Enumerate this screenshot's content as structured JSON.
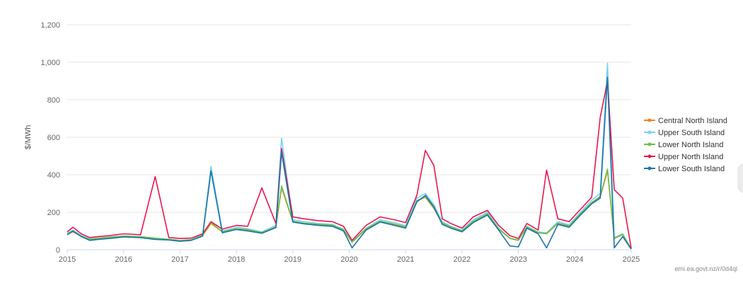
{
  "chart_data": {
    "type": "line",
    "title": "",
    "xlabel": "",
    "ylabel": "$/MWh",
    "ylim": [
      0,
      1200
    ],
    "xlim": [
      2015,
      2025
    ],
    "yticks": [
      0,
      200,
      400,
      600,
      800,
      1000,
      1200
    ],
    "ytick_labels": [
      "0",
      "200",
      "400",
      "600",
      "800",
      "1,000",
      "1,200"
    ],
    "xticks": [
      2015,
      2016,
      2017,
      2018,
      2019,
      2020,
      2021,
      2022,
      2023,
      2024,
      2025
    ],
    "xtick_labels": [
      "2015",
      "2016",
      "2017",
      "2018",
      "2019",
      "2020",
      "2021",
      "2022",
      "2023",
      "2024",
      "2025"
    ],
    "grid": "horizontal",
    "legend_position": "right",
    "credit": "emi.ea.govt.nz/r/0d4ql",
    "series": [
      {
        "name": "Central North Island",
        "color": "#f5821f",
        "x": [
          2015.0,
          2015.1,
          2015.25,
          2015.4,
          2015.55,
          2015.75,
          2016.0,
          2016.3,
          2016.56,
          2016.8,
          2017.0,
          2017.2,
          2017.4,
          2017.55,
          2017.75,
          2018.0,
          2018.2,
          2018.45,
          2018.7,
          2018.8,
          2019.0,
          2019.2,
          2019.45,
          2019.7,
          2019.9,
          2020.05,
          2020.3,
          2020.55,
          2020.8,
          2021.0,
          2021.2,
          2021.35,
          2021.5,
          2021.65,
          2021.8,
          2022.0,
          2022.2,
          2022.45,
          2022.65,
          2022.85,
          2023.0,
          2023.15,
          2023.35,
          2023.5,
          2023.7,
          2023.9,
          2024.1,
          2024.3,
          2024.45,
          2024.58,
          2024.7,
          2024.85,
          2025.0
        ],
        "values": [
          82,
          95,
          72,
          55,
          60,
          65,
          72,
          68,
          60,
          55,
          48,
          52,
          75,
          140,
          95,
          110,
          105,
          90,
          120,
          330,
          150,
          140,
          135,
          130,
          105,
          40,
          110,
          150,
          135,
          120,
          260,
          280,
          220,
          140,
          120,
          100,
          150,
          190,
          110,
          60,
          50,
          120,
          90,
          85,
          140,
          125,
          190,
          250,
          280,
          420,
          60,
          80,
          5
        ]
      },
      {
        "name": "Upper South Island",
        "color": "#7cd0f0",
        "x": [
          2015.0,
          2015.1,
          2015.25,
          2015.4,
          2015.55,
          2015.75,
          2016.0,
          2016.3,
          2016.56,
          2016.8,
          2017.0,
          2017.2,
          2017.4,
          2017.55,
          2017.75,
          2018.0,
          2018.2,
          2018.45,
          2018.7,
          2018.8,
          2019.0,
          2019.2,
          2019.45,
          2019.7,
          2019.9,
          2020.05,
          2020.3,
          2020.55,
          2020.8,
          2021.0,
          2021.2,
          2021.35,
          2021.5,
          2021.65,
          2021.8,
          2022.0,
          2022.2,
          2022.45,
          2022.65,
          2022.85,
          2023.0,
          2023.15,
          2023.35,
          2023.5,
          2023.7,
          2023.9,
          2024.1,
          2024.3,
          2024.45,
          2024.58,
          2024.7,
          2024.85,
          2025.0
        ],
        "values": [
          88,
          105,
          76,
          58,
          62,
          68,
          74,
          70,
          62,
          56,
          50,
          54,
          80,
          445,
          100,
          120,
          112,
          95,
          130,
          595,
          160,
          150,
          140,
          135,
          110,
          42,
          115,
          160,
          145,
          128,
          275,
          300,
          240,
          150,
          125,
          105,
          160,
          200,
          115,
          62,
          52,
          125,
          95,
          90,
          150,
          132,
          200,
          265,
          300,
          995,
          65,
          85,
          6
        ]
      },
      {
        "name": "Lower North Island",
        "color": "#6cc04a",
        "x": [
          2015.0,
          2015.1,
          2015.25,
          2015.4,
          2015.55,
          2015.75,
          2016.0,
          2016.3,
          2016.56,
          2016.8,
          2017.0,
          2017.2,
          2017.4,
          2017.55,
          2017.75,
          2018.0,
          2018.2,
          2018.45,
          2018.7,
          2018.8,
          2019.0,
          2019.2,
          2019.45,
          2019.7,
          2019.9,
          2020.05,
          2020.3,
          2020.55,
          2020.8,
          2021.0,
          2021.2,
          2021.35,
          2021.5,
          2021.65,
          2021.8,
          2022.0,
          2022.2,
          2022.45,
          2022.65,
          2022.85,
          2023.0,
          2023.15,
          2023.35,
          2023.5,
          2023.7,
          2023.9,
          2024.1,
          2024.3,
          2024.45,
          2024.58,
          2024.7,
          2024.85,
          2025.0
        ],
        "values": [
          84,
          98,
          73,
          56,
          61,
          66,
          73,
          69,
          61,
          55,
          49,
          53,
          77,
          145,
          96,
          112,
          107,
          92,
          122,
          340,
          152,
          142,
          136,
          131,
          106,
          41,
          112,
          152,
          137,
          122,
          262,
          283,
          224,
          142,
          121,
          101,
          152,
          192,
          111,
          61,
          51,
          121,
          91,
          86,
          142,
          127,
          192,
          252,
          284,
          430,
          61,
          81,
          5
        ]
      },
      {
        "name": "Upper North Island",
        "color": "#e8174e",
        "x": [
          2015.0,
          2015.1,
          2015.25,
          2015.4,
          2015.55,
          2015.75,
          2016.0,
          2016.3,
          2016.56,
          2016.8,
          2017.0,
          2017.2,
          2017.4,
          2017.55,
          2017.75,
          2018.0,
          2018.2,
          2018.45,
          2018.7,
          2018.8,
          2019.0,
          2019.2,
          2019.45,
          2019.7,
          2019.9,
          2020.05,
          2020.3,
          2020.55,
          2020.8,
          2021.0,
          2021.2,
          2021.35,
          2021.5,
          2021.65,
          2021.8,
          2022.0,
          2022.2,
          2022.45,
          2022.65,
          2022.85,
          2023.0,
          2023.15,
          2023.35,
          2023.5,
          2023.7,
          2023.9,
          2024.1,
          2024.3,
          2024.45,
          2024.58,
          2024.7,
          2024.85,
          2025.0
        ],
        "values": [
          95,
          120,
          85,
          65,
          70,
          75,
          85,
          80,
          390,
          65,
          60,
          62,
          85,
          150,
          110,
          130,
          125,
          330,
          140,
          540,
          175,
          165,
          155,
          150,
          125,
          50,
          130,
          175,
          160,
          145,
          290,
          530,
          450,
          165,
          140,
          115,
          175,
          210,
          130,
          75,
          60,
          140,
          105,
          425,
          165,
          150,
          215,
          280,
          705,
          900,
          320,
          275,
          8
        ]
      },
      {
        "name": "Lower South Island",
        "color": "#1a75a8",
        "x": [
          2015.0,
          2015.1,
          2015.25,
          2015.4,
          2015.55,
          2015.75,
          2016.0,
          2016.3,
          2016.56,
          2016.8,
          2017.0,
          2017.2,
          2017.4,
          2017.55,
          2017.75,
          2018.0,
          2018.2,
          2018.45,
          2018.7,
          2018.8,
          2019.0,
          2019.2,
          2019.45,
          2019.7,
          2019.9,
          2020.05,
          2020.3,
          2020.55,
          2020.8,
          2021.0,
          2021.2,
          2021.35,
          2021.5,
          2021.65,
          2021.8,
          2022.0,
          2022.2,
          2022.45,
          2022.65,
          2022.85,
          2023.0,
          2023.15,
          2023.35,
          2023.5,
          2023.7,
          2023.9,
          2024.1,
          2024.3,
          2024.45,
          2024.58,
          2024.7,
          2024.85,
          2025.0
        ],
        "values": [
          80,
          100,
          70,
          50,
          55,
          60,
          68,
          64,
          55,
          52,
          45,
          50,
          72,
          420,
          90,
          108,
          100,
          88,
          118,
          520,
          148,
          138,
          130,
          125,
          100,
          10,
          105,
          148,
          130,
          115,
          255,
          290,
          230,
          135,
          115,
          95,
          145,
          185,
          105,
          20,
          15,
          115,
          85,
          10,
          135,
          120,
          185,
          245,
          275,
          920,
          10,
          70,
          3
        ]
      }
    ]
  }
}
